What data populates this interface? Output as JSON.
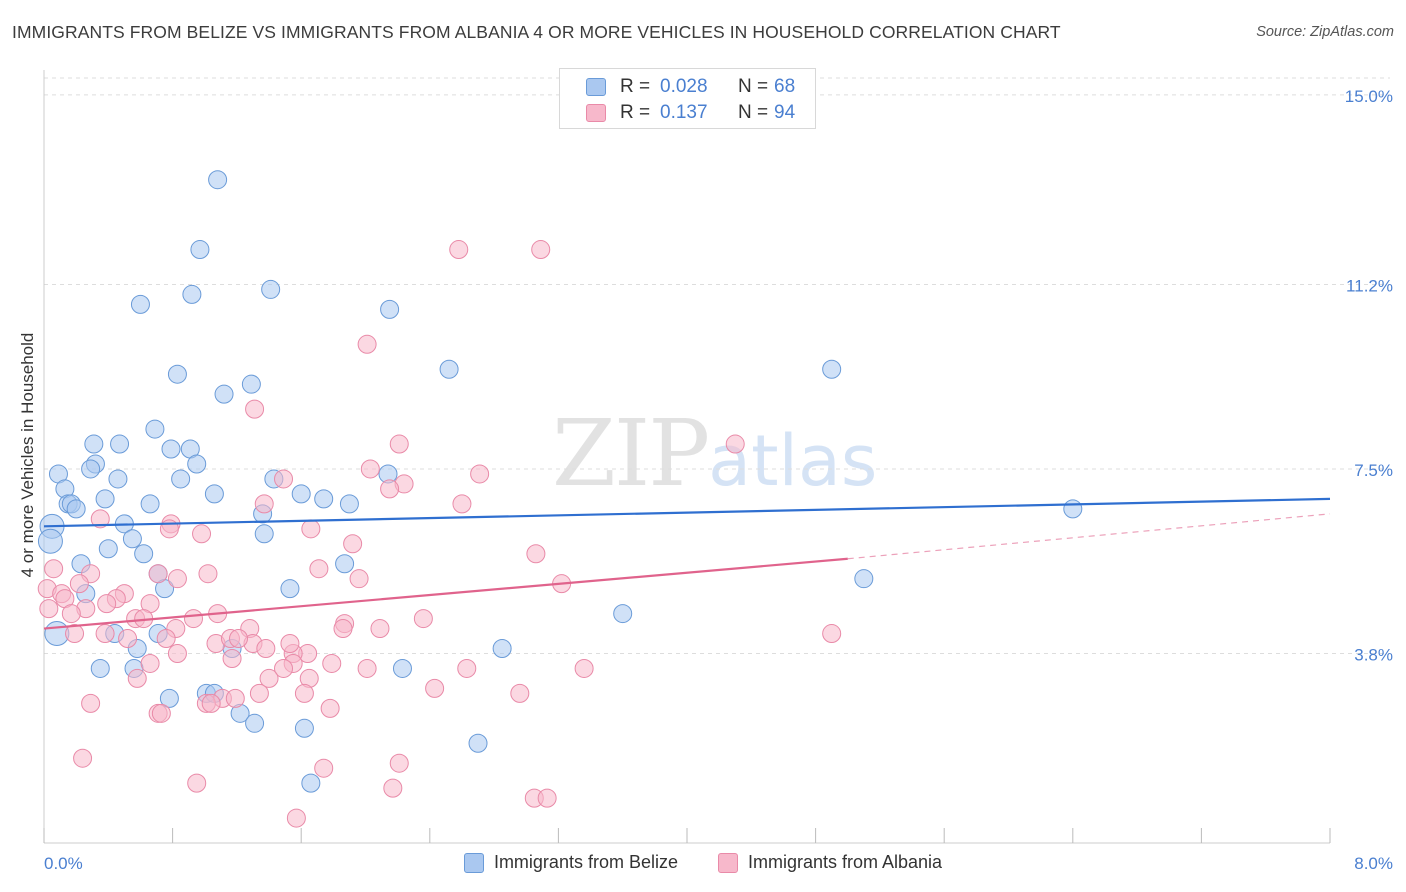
{
  "title": "IMMIGRANTS FROM BELIZE VS IMMIGRANTS FROM ALBANIA 4 OR MORE VEHICLES IN HOUSEHOLD CORRELATION CHART",
  "source": "Source: ZipAtlas.com",
  "watermark": {
    "zip": "ZIP",
    "atlas": "atlas"
  },
  "legend": {
    "rows": [
      {
        "r_label": "R =",
        "r_value": "0.028",
        "n_label": "N =",
        "n_value": "68"
      },
      {
        "r_label": "R =",
        "r_value": "0.137",
        "n_label": "N =",
        "n_value": "94"
      }
    ],
    "bottom": [
      "Immigrants from Belize",
      "Immigrants from Albania"
    ]
  },
  "colors": {
    "belize_fill": "#aac8f0",
    "belize_stroke": "#6a9bd8",
    "belize_line": "#2f6fd0",
    "albania_fill": "#f7b8cb",
    "albania_stroke": "#e98aa8",
    "albania_line": "#e0638c",
    "grid": "#dddddd",
    "tick_text": "#4a7fd0"
  },
  "chart_data": {
    "type": "scatter",
    "title": "IMMIGRANTS FROM BELIZE VS IMMIGRANTS FROM ALBANIA 4 OR MORE VEHICLES IN HOUSEHOLD CORRELATION CHART",
    "xlabel": "",
    "ylabel": "4 or more Vehicles in Household",
    "xlim": [
      0,
      8
    ],
    "ylim": [
      0,
      15.5
    ],
    "x_tick_labels": [
      "0.0%",
      "8.0%"
    ],
    "y_ticks": [
      3.8,
      7.5,
      11.2,
      15.0
    ],
    "y_tick_labels": [
      "3.8%",
      "7.5%",
      "11.2%",
      "15.0%"
    ],
    "series": [
      {
        "name": "Immigrants from Belize",
        "r": 0.028,
        "n": 68,
        "trend": {
          "x": [
            0,
            8
          ],
          "y": [
            6.35,
            6.9
          ]
        },
        "points": [
          [
            1.08,
            13.3
          ],
          [
            0.97,
            11.9
          ],
          [
            0.6,
            10.8
          ],
          [
            0.92,
            11.0
          ],
          [
            1.41,
            11.1
          ],
          [
            2.15,
            10.7
          ],
          [
            0.83,
            9.4
          ],
          [
            2.52,
            9.5
          ],
          [
            4.9,
            9.5
          ],
          [
            1.12,
            9.0
          ],
          [
            1.29,
            9.2
          ],
          [
            0.69,
            8.3
          ],
          [
            0.31,
            8.0
          ],
          [
            0.47,
            8.0
          ],
          [
            0.79,
            7.9
          ],
          [
            0.91,
            7.9
          ],
          [
            0.95,
            7.6
          ],
          [
            0.32,
            7.6
          ],
          [
            0.29,
            7.5
          ],
          [
            0.09,
            7.4
          ],
          [
            0.46,
            7.3
          ],
          [
            0.85,
            7.3
          ],
          [
            1.43,
            7.3
          ],
          [
            2.14,
            7.4
          ],
          [
            0.13,
            7.1
          ],
          [
            0.38,
            6.9
          ],
          [
            1.06,
            7.0
          ],
          [
            1.6,
            7.0
          ],
          [
            0.15,
            6.8
          ],
          [
            0.17,
            6.8
          ],
          [
            0.2,
            6.7
          ],
          [
            0.66,
            6.8
          ],
          [
            1.74,
            6.9
          ],
          [
            1.9,
            6.8
          ],
          [
            0.5,
            6.4
          ],
          [
            1.36,
            6.6
          ],
          [
            0.05,
            6.35
          ],
          [
            1.37,
            6.2
          ],
          [
            0.55,
            6.1
          ],
          [
            0.04,
            6.05
          ],
          [
            0.4,
            5.9
          ],
          [
            0.62,
            5.8
          ],
          [
            0.23,
            5.6
          ],
          [
            0.71,
            5.4
          ],
          [
            1.87,
            5.6
          ],
          [
            0.75,
            5.1
          ],
          [
            0.26,
            5.0
          ],
          [
            1.53,
            5.1
          ],
          [
            0.08,
            4.2
          ],
          [
            0.71,
            4.2
          ],
          [
            0.44,
            4.2
          ],
          [
            0.58,
            3.9
          ],
          [
            2.85,
            3.9
          ],
          [
            1.17,
            3.9
          ],
          [
            0.35,
            3.5
          ],
          [
            0.56,
            3.5
          ],
          [
            2.23,
            3.5
          ],
          [
            1.01,
            3.0
          ],
          [
            1.06,
            3.0
          ],
          [
            0.78,
            2.9
          ],
          [
            1.22,
            2.6
          ],
          [
            1.31,
            2.4
          ],
          [
            1.62,
            2.3
          ],
          [
            2.7,
            2.0
          ],
          [
            1.66,
            1.2
          ],
          [
            6.4,
            6.7
          ],
          [
            5.1,
            5.3
          ],
          [
            3.6,
            4.6
          ]
        ]
      },
      {
        "name": "Immigrants from Albania",
        "r": 0.137,
        "n": 94,
        "trend": {
          "x": [
            0,
            5.0
          ],
          "y": [
            4.3,
            5.7
          ]
        },
        "trend_dashed": {
          "x": [
            5.0,
            8.0
          ],
          "y": [
            5.7,
            6.6
          ]
        },
        "points": [
          [
            2.58,
            11.9
          ],
          [
            3.09,
            11.9
          ],
          [
            2.01,
            10.0
          ],
          [
            1.31,
            8.7
          ],
          [
            2.21,
            8.0
          ],
          [
            4.3,
            8.0
          ],
          [
            2.03,
            7.5
          ],
          [
            2.71,
            7.4
          ],
          [
            1.49,
            7.3
          ],
          [
            2.24,
            7.2
          ],
          [
            2.15,
            7.1
          ],
          [
            2.6,
            6.8
          ],
          [
            1.37,
            6.8
          ],
          [
            0.35,
            6.5
          ],
          [
            0.79,
            6.4
          ],
          [
            0.78,
            6.3
          ],
          [
            1.66,
            6.3
          ],
          [
            0.98,
            6.2
          ],
          [
            1.92,
            6.0
          ],
          [
            3.06,
            5.8
          ],
          [
            0.06,
            5.5
          ],
          [
            0.29,
            5.4
          ],
          [
            1.02,
            5.4
          ],
          [
            1.71,
            5.5
          ],
          [
            0.71,
            5.4
          ],
          [
            0.83,
            5.3
          ],
          [
            1.96,
            5.3
          ],
          [
            0.22,
            5.2
          ],
          [
            0.02,
            5.1
          ],
          [
            3.22,
            5.2
          ],
          [
            0.11,
            5.0
          ],
          [
            0.13,
            4.9
          ],
          [
            0.5,
            5.0
          ],
          [
            0.45,
            4.9
          ],
          [
            0.39,
            4.8
          ],
          [
            0.66,
            4.8
          ],
          [
            0.26,
            4.7
          ],
          [
            0.03,
            4.7
          ],
          [
            0.17,
            4.6
          ],
          [
            0.93,
            4.5
          ],
          [
            1.08,
            4.6
          ],
          [
            0.57,
            4.5
          ],
          [
            0.62,
            4.5
          ],
          [
            2.36,
            4.5
          ],
          [
            0.82,
            4.3
          ],
          [
            1.28,
            4.3
          ],
          [
            1.87,
            4.4
          ],
          [
            1.86,
            4.3
          ],
          [
            0.19,
            4.2
          ],
          [
            0.38,
            4.2
          ],
          [
            2.09,
            4.3
          ],
          [
            4.9,
            4.2
          ],
          [
            0.52,
            4.1
          ],
          [
            0.76,
            4.1
          ],
          [
            1.07,
            4.0
          ],
          [
            1.16,
            4.1
          ],
          [
            1.3,
            4.0
          ],
          [
            1.38,
            3.9
          ],
          [
            0.83,
            3.8
          ],
          [
            1.64,
            3.8
          ],
          [
            1.55,
            3.8
          ],
          [
            1.17,
            3.7
          ],
          [
            1.55,
            3.6
          ],
          [
            1.79,
            3.6
          ],
          [
            0.66,
            3.6
          ],
          [
            2.01,
            3.5
          ],
          [
            1.49,
            3.5
          ],
          [
            2.63,
            3.5
          ],
          [
            3.36,
            3.5
          ],
          [
            1.65,
            3.3
          ],
          [
            1.4,
            3.3
          ],
          [
            0.58,
            3.3
          ],
          [
            2.43,
            3.1
          ],
          [
            1.34,
            3.0
          ],
          [
            1.62,
            3.0
          ],
          [
            2.96,
            3.0
          ],
          [
            1.11,
            2.9
          ],
          [
            1.19,
            2.9
          ],
          [
            1.01,
            2.8
          ],
          [
            1.04,
            2.8
          ],
          [
            0.29,
            2.8
          ],
          [
            1.78,
            2.7
          ],
          [
            0.71,
            2.6
          ],
          [
            0.73,
            2.6
          ],
          [
            0.24,
            1.7
          ],
          [
            1.74,
            1.5
          ],
          [
            2.21,
            1.6
          ],
          [
            0.95,
            1.2
          ],
          [
            2.17,
            1.1
          ],
          [
            3.05,
            0.9
          ],
          [
            3.13,
            0.9
          ],
          [
            1.57,
            0.5
          ],
          [
            1.21,
            4.1
          ],
          [
            1.53,
            4.0
          ]
        ]
      }
    ]
  }
}
